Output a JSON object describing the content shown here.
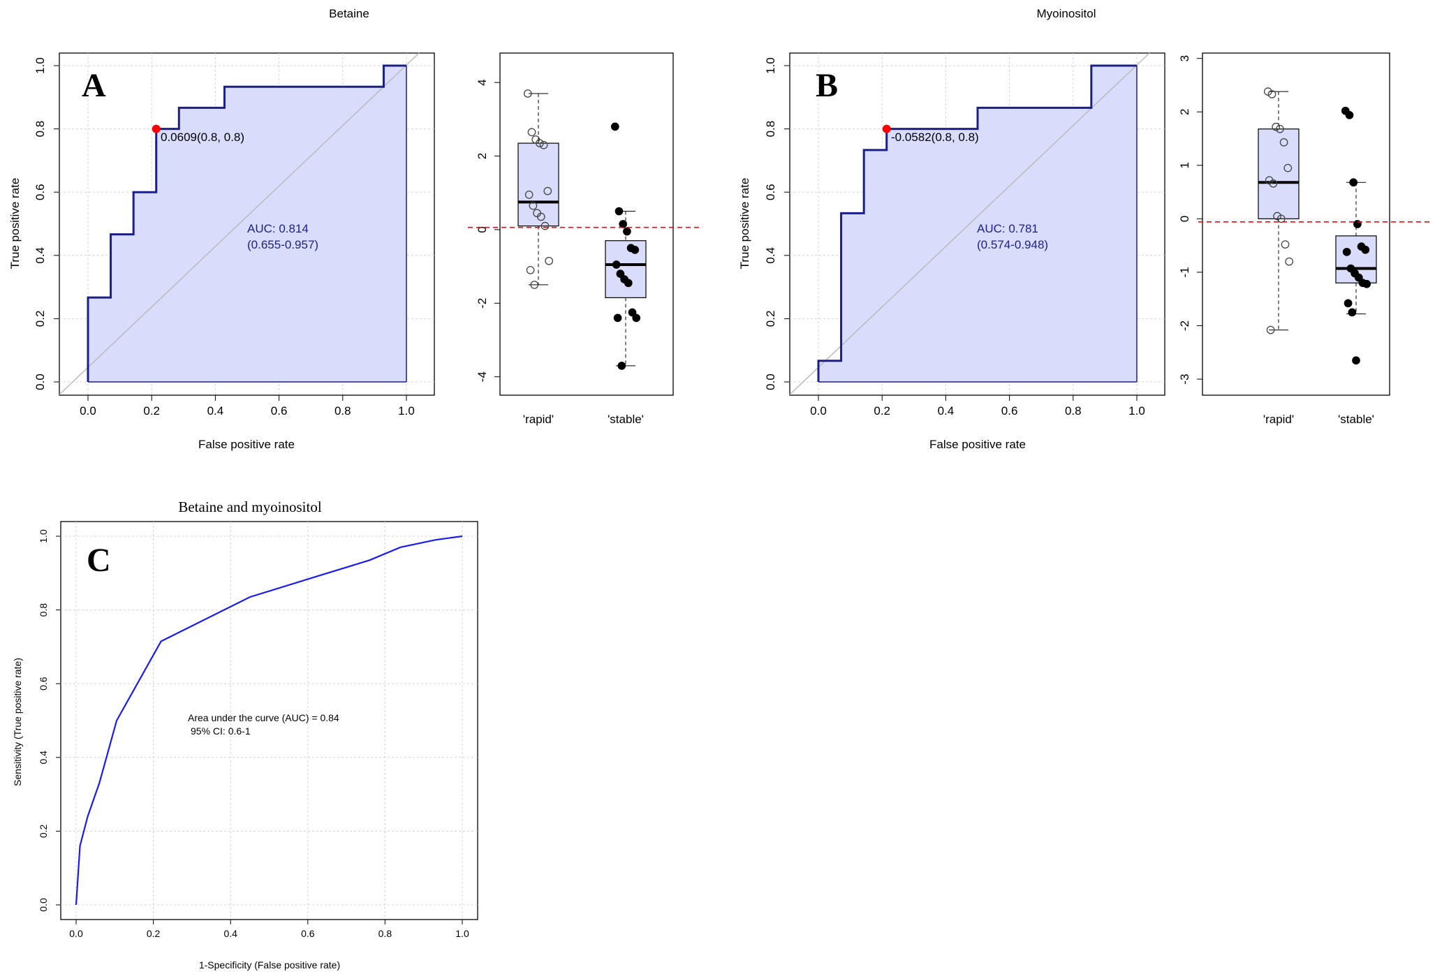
{
  "panels": {
    "betaine_title": "Betaine",
    "myoinositol_title": "Myoinositol",
    "combined_title": "Betaine and myoinositol",
    "letter_a": "A",
    "letter_b": "B",
    "letter_c": "C"
  },
  "axes": {
    "roc_x_label": "False positive rate",
    "roc_y_label": "True positive rate",
    "c_x_label": "1-Specificity (False positive rate)",
    "c_y_label": "Sensitivity (True positive rate)"
  },
  "annotations": {
    "a_threshold": "0.0609(0.8, 0.8)",
    "a_auc": "AUC: 0.814",
    "a_ci": "(0.655-0.957)",
    "b_threshold": "-0.0582(0.8, 0.8)",
    "b_auc": "AUC: 0.781",
    "b_ci": "(0.574-0.948)",
    "c_auc": "Area under the curve (AUC) = 0.84",
    "c_ci": "95% CI: 0.6-1"
  },
  "colors": {
    "roc_line": "#1a1f8c",
    "roc_fill": "#d9dcfb",
    "diagonal": "#bbbbbb",
    "cutoff_point": "#ff0000",
    "cutoff_line": "#ff0000",
    "box_fill": "#d9dcfb",
    "c_curve": "#1b1bf0"
  },
  "chart_data": [
    {
      "id": "A-roc",
      "type": "line",
      "title": "Betaine",
      "xlabel": "False positive rate",
      "ylabel": "True positive rate",
      "xlim": [
        0,
        1
      ],
      "ylim": [
        0,
        1
      ],
      "x": [
        0,
        0,
        0.0714,
        0.0714,
        0.1429,
        0.1429,
        0.2143,
        0.2143,
        0.2857,
        0.2857,
        0.4286,
        0.4286,
        0.9286,
        0.9286,
        1.0
      ],
      "y": [
        0,
        0.2667,
        0.2667,
        0.4667,
        0.4667,
        0.6,
        0.6,
        0.8,
        0.8,
        0.8667,
        0.8667,
        0.9333,
        0.9333,
        1.0,
        1.0
      ],
      "cutoff": {
        "x": 0.2143,
        "y": 0.8,
        "label": "0.0609(0.8, 0.8)"
      },
      "auc": 0.814,
      "ci": [
        0.655,
        0.957
      ],
      "grid": true
    },
    {
      "id": "A-box",
      "type": "box",
      "categories": [
        "'rapid'",
        "'stable'"
      ],
      "ylim": [
        -4.5,
        4.8
      ],
      "yticks": [
        -4,
        -2,
        0,
        2,
        4
      ],
      "cutoff_y": 0.0609,
      "boxes": [
        {
          "q1": 0.1,
          "median": 0.75,
          "q3": 2.35,
          "lower": -1.5,
          "upper": 3.7
        },
        {
          "q1": -1.85,
          "median": -0.95,
          "q3": -0.3,
          "lower": -3.7,
          "upper": 0.5
        }
      ],
      "points": [
        {
          "group": 0,
          "values": [
            3.7,
            2.65,
            2.45,
            2.35,
            2.3,
            1.05,
            0.95,
            0.65,
            0.45,
            0.35,
            0.1,
            -0.85,
            -1.1,
            -1.5
          ]
        },
        {
          "group": 1,
          "values": [
            2.8,
            0.5,
            0.15,
            -0.05,
            -0.5,
            -0.55,
            -0.95,
            -1.2,
            -1.35,
            -1.45,
            -2.25,
            -2.4,
            -2.4,
            -3.7
          ]
        }
      ]
    },
    {
      "id": "B-roc",
      "type": "line",
      "title": "Myoinositol",
      "xlabel": "False positive rate",
      "ylabel": "True positive rate",
      "xlim": [
        0,
        1
      ],
      "ylim": [
        0,
        1
      ],
      "x": [
        0,
        0,
        0.0714,
        0.0714,
        0.1429,
        0.1429,
        0.2143,
        0.2143,
        0.5,
        0.5,
        0.8571,
        0.8571,
        1.0
      ],
      "y": [
        0,
        0.0667,
        0.0667,
        0.5333,
        0.5333,
        0.7333,
        0.7333,
        0.8,
        0.8,
        0.8667,
        0.8667,
        1.0,
        1.0
      ],
      "cutoff": {
        "x": 0.2143,
        "y": 0.8,
        "label": "-0.0582(0.8, 0.8)"
      },
      "auc": 0.781,
      "ci": [
        0.574,
        0.948
      ],
      "grid": true
    },
    {
      "id": "B-box",
      "type": "box",
      "categories": [
        "'rapid'",
        "'stable'"
      ],
      "ylim": [
        -3.3,
        3.1
      ],
      "yticks": [
        -3,
        -2,
        -1,
        0,
        1,
        2,
        3
      ],
      "cutoff_y": -0.0582,
      "boxes": [
        {
          "q1": 0.0,
          "median": 0.68,
          "q3": 1.68,
          "lower": -2.08,
          "upper": 2.38
        },
        {
          "q1": -1.2,
          "median": -0.93,
          "q3": -0.32,
          "lower": -1.78,
          "upper": 0.68
        }
      ],
      "points": [
        {
          "group": 0,
          "values": [
            2.38,
            2.33,
            1.72,
            1.68,
            1.43,
            0.95,
            0.72,
            0.66,
            0.05,
            0.0,
            -0.48,
            -0.8,
            -2.08
          ]
        },
        {
          "group": 1,
          "values": [
            2.02,
            1.94,
            0.68,
            -0.1,
            -0.52,
            -0.58,
            -0.62,
            -0.93,
            -1.02,
            -1.1,
            -1.2,
            -1.22,
            -1.58,
            -1.75,
            -2.65
          ]
        }
      ]
    },
    {
      "id": "C-roc",
      "type": "line",
      "title": "Betaine and myoinositol",
      "xlabel": "1-Specificity (False positive rate)",
      "ylabel": "Sensitivity (True positive rate)",
      "xlim": [
        0,
        1
      ],
      "ylim": [
        0,
        1
      ],
      "x": [
        0,
        0.01,
        0.03,
        0.06,
        0.105,
        0.22,
        0.45,
        0.62,
        0.76,
        0.84,
        0.93,
        1.0
      ],
      "y": [
        0,
        0.16,
        0.24,
        0.33,
        0.5,
        0.715,
        0.835,
        0.89,
        0.935,
        0.97,
        0.99,
        1.0
      ],
      "auc": 0.84,
      "ci": [
        0.6,
        1
      ],
      "grid": true
    }
  ]
}
